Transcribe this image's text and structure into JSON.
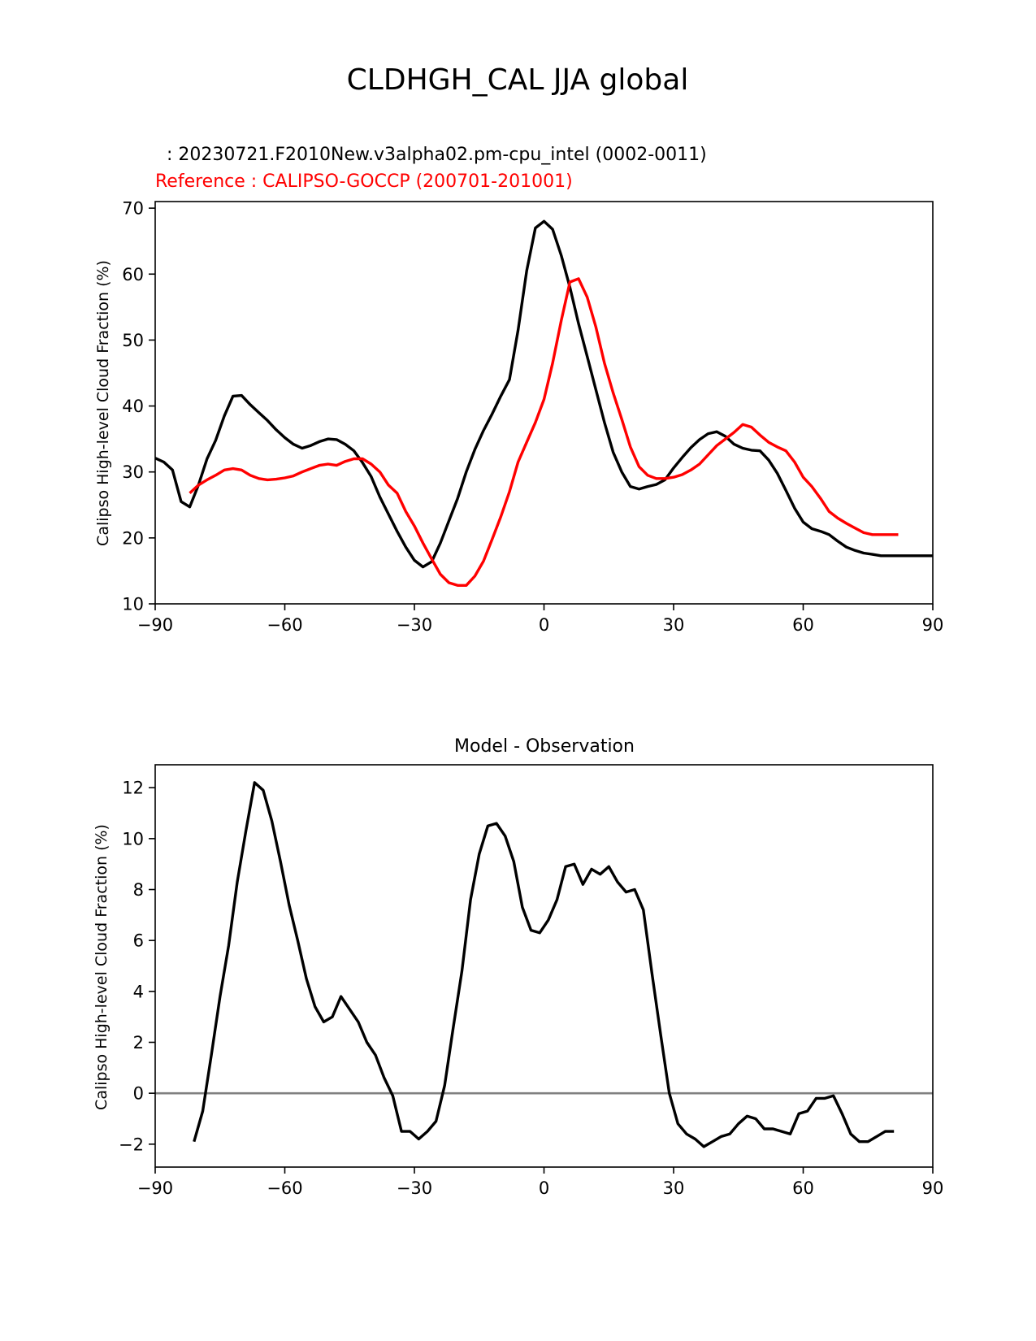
{
  "figure_title": "CLDHGH_CAL JJA global",
  "colors": {
    "model": "#000000",
    "reference": "#ff0000",
    "zero_line": "#808080",
    "axis": "#000000"
  },
  "chart_data": [
    {
      "type": "line",
      "title": "",
      "test_label": ": 20230721.F2010New.v3alpha02.pm-cpu_intel (0002-0011)",
      "reference_label": "Reference : CALIPSO-GOCCP (200701-201001)",
      "xlabel": "",
      "ylabel": "Calipso High-level Cloud Fraction (%)",
      "xlim": [
        -90,
        90
      ],
      "ylim": [
        10,
        71
      ],
      "xticks": [
        -90,
        -60,
        -30,
        0,
        30,
        60,
        90
      ],
      "xtick_labels": [
        "−90",
        "−60",
        "−30",
        "0",
        "30",
        "60",
        "90"
      ],
      "yticks": [
        10,
        20,
        30,
        40,
        50,
        60,
        70
      ],
      "ytick_labels": [
        "10",
        "20",
        "30",
        "40",
        "50",
        "60",
        "70"
      ],
      "series": [
        {
          "name": "model",
          "x": [
            -90,
            -88,
            -86,
            -84,
            -82,
            -80,
            -78,
            -76,
            -74,
            -72,
            -70,
            -68,
            -66,
            -64,
            -62,
            -60,
            -58,
            -56,
            -54,
            -52,
            -50,
            -48,
            -46,
            -44,
            -42,
            -40,
            -38,
            -36,
            -34,
            -32,
            -30,
            -28,
            -26,
            -24,
            -22,
            -20,
            -18,
            -16,
            -14,
            -12,
            -10,
            -8,
            -6,
            -4,
            -2,
            0,
            2,
            4,
            6,
            8,
            10,
            12,
            14,
            16,
            18,
            20,
            22,
            24,
            26,
            28,
            30,
            32,
            34,
            36,
            38,
            40,
            42,
            44,
            46,
            48,
            50,
            52,
            54,
            56,
            58,
            60,
            62,
            64,
            66,
            68,
            70,
            72,
            74,
            76,
            78,
            80,
            82,
            84,
            86,
            88,
            90
          ],
          "values": [
            32.1,
            31.5,
            30.3,
            25.5,
            24.7,
            28.0,
            32.0,
            34.8,
            38.5,
            41.5,
            41.6,
            40.2,
            39.0,
            37.8,
            36.4,
            35.2,
            34.2,
            33.6,
            34.0,
            34.6,
            35.0,
            34.9,
            34.2,
            33.2,
            31.4,
            29.3,
            26.2,
            23.6,
            21.0,
            18.6,
            16.6,
            15.6,
            16.4,
            19.2,
            22.6,
            26.0,
            30.0,
            33.4,
            36.3,
            38.8,
            41.5,
            44.0,
            51.5,
            60.5,
            67.0,
            68.0,
            66.8,
            62.8,
            58.0,
            52.5,
            47.5,
            42.5,
            37.5,
            33.0,
            30.0,
            27.8,
            27.4,
            27.8,
            28.1,
            28.8,
            30.6,
            32.2,
            33.7,
            34.9,
            35.8,
            36.1,
            35.4,
            34.2,
            33.6,
            33.3,
            33.2,
            31.8,
            29.8,
            27.2,
            24.5,
            22.4,
            21.4,
            21.0,
            20.5,
            19.5,
            18.6,
            18.1,
            17.7,
            17.5,
            17.3,
            17.3,
            17.3,
            17.3,
            17.3,
            17.3,
            17.3
          ]
        },
        {
          "name": "reference",
          "x": [
            -82,
            -80,
            -78,
            -76,
            -74,
            -72,
            -70,
            -68,
            -66,
            -64,
            -62,
            -60,
            -58,
            -56,
            -54,
            -52,
            -50,
            -48,
            -46,
            -44,
            -42,
            -40,
            -38,
            -36,
            -34,
            -32,
            -30,
            -28,
            -26,
            -24,
            -22,
            -20,
            -18,
            -16,
            -14,
            -12,
            -10,
            -8,
            -6,
            -4,
            -2,
            0,
            2,
            4,
            6,
            8,
            10,
            12,
            14,
            16,
            18,
            20,
            22,
            24,
            26,
            28,
            30,
            32,
            34,
            36,
            38,
            40,
            42,
            44,
            46,
            48,
            50,
            52,
            54,
            56,
            58,
            60,
            62,
            64,
            66,
            68,
            70,
            72,
            74,
            76,
            78,
            80,
            82
          ],
          "values": [
            26.8,
            28.0,
            28.8,
            29.5,
            30.3,
            30.5,
            30.3,
            29.5,
            29.0,
            28.8,
            28.9,
            29.1,
            29.4,
            30.0,
            30.5,
            31.0,
            31.2,
            31.0,
            31.6,
            32.0,
            32.0,
            31.2,
            30.0,
            28.0,
            26.8,
            24.0,
            21.8,
            19.2,
            16.8,
            14.5,
            13.2,
            12.8,
            12.8,
            14.2,
            16.5,
            19.8,
            23.2,
            27.0,
            31.5,
            34.5,
            37.5,
            41.0,
            46.5,
            53.0,
            58.8,
            59.3,
            56.5,
            52.0,
            46.5,
            42.0,
            38.0,
            33.8,
            30.8,
            29.5,
            29.0,
            29.0,
            29.2,
            29.6,
            30.3,
            31.2,
            32.6,
            34.0,
            35.0,
            36.0,
            37.2,
            36.8,
            35.6,
            34.5,
            33.8,
            33.2,
            31.5,
            29.2,
            27.8,
            26.0,
            24.0,
            23.0,
            22.2,
            21.5,
            20.8,
            20.5,
            20.5,
            20.5,
            20.5
          ]
        }
      ]
    },
    {
      "type": "line",
      "title": "Model - Observation",
      "xlabel": "",
      "ylabel": "Calipso High-level Cloud Fraction (%)",
      "xlim": [
        -90,
        90
      ],
      "ylim": [
        -2.9,
        12.9
      ],
      "xticks": [
        -90,
        -60,
        -30,
        0,
        30,
        60,
        90
      ],
      "xtick_labels": [
        "−90",
        "−60",
        "−30",
        "0",
        "30",
        "60",
        "90"
      ],
      "yticks": [
        -2,
        0,
        2,
        4,
        6,
        8,
        10,
        12
      ],
      "ytick_labels": [
        "−2",
        "0",
        "2",
        "4",
        "6",
        "8",
        "10",
        "12"
      ],
      "reference_line": 0,
      "series": [
        {
          "name": "difference",
          "x": [
            -81,
            -79,
            -77,
            -75,
            -73,
            -71,
            -69,
            -67,
            -65,
            -63,
            -61,
            -59,
            -57,
            -55,
            -53,
            -51,
            -49,
            -47,
            -45,
            -43,
            -41,
            -39,
            -37,
            -35,
            -33,
            -31,
            -29,
            -27,
            -25,
            -23,
            -21,
            -19,
            -17,
            -15,
            -13,
            -11,
            -9,
            -7,
            -5,
            -3,
            -1,
            1,
            3,
            5,
            7,
            9,
            11,
            13,
            15,
            17,
            19,
            21,
            23,
            25,
            27,
            29,
            31,
            33,
            35,
            37,
            39,
            41,
            43,
            45,
            47,
            49,
            51,
            53,
            55,
            57,
            59,
            61,
            63,
            65,
            67,
            69,
            71,
            73,
            75,
            77,
            79,
            81
          ],
          "values": [
            -1.9,
            -0.7,
            1.5,
            3.8,
            5.8,
            8.3,
            10.3,
            12.2,
            11.9,
            10.7,
            9.1,
            7.4,
            6.0,
            4.5,
            3.4,
            2.8,
            3.0,
            3.8,
            3.3,
            2.8,
            2.0,
            1.5,
            0.6,
            -0.1,
            -1.5,
            -1.5,
            -1.8,
            -1.5,
            -1.1,
            0.3,
            2.6,
            4.8,
            7.6,
            9.4,
            10.5,
            10.6,
            10.1,
            9.1,
            7.3,
            6.4,
            6.3,
            6.8,
            7.6,
            8.9,
            9.0,
            8.2,
            8.8,
            8.6,
            8.9,
            8.3,
            7.9,
            8.0,
            7.2,
            4.7,
            2.3,
            0.0,
            -1.2,
            -1.6,
            -1.8,
            -2.1,
            -1.9,
            -1.7,
            -1.6,
            -1.2,
            -0.9,
            -1.0,
            -1.4,
            -1.4,
            -1.5,
            -1.6,
            -0.8,
            -0.7,
            -0.2,
            -0.2,
            -0.1,
            -0.8,
            -1.6,
            -1.9,
            -1.9,
            -1.7,
            -1.5,
            -1.5
          ]
        }
      ]
    }
  ]
}
